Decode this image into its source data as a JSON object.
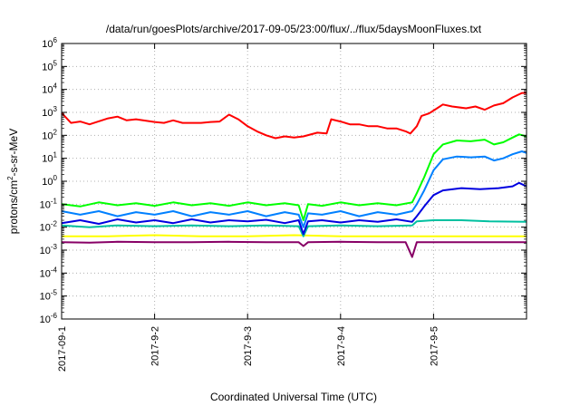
{
  "chart_data": {
    "type": "line",
    "title": "/data/run/goesPlots/archive/2017-09-05/23:00/flux/../flux/5daysMoonFluxes.txt",
    "xlabel": "Coordinated Universal Time (UTC)",
    "ylabel_parts": {
      "base": "protons/cm",
      "exp": "2",
      "rest": "-s-sr-MeV"
    },
    "x_ticks": [
      "2017-09-1",
      "2017-9-2",
      "2017-9-3",
      "2017-9-4",
      "2017-9-5"
    ],
    "x_tick_days": [
      0,
      1,
      2,
      3,
      4
    ],
    "xlim_days": [
      0,
      5
    ],
    "y_scale": "log",
    "ylim": [
      1e-06,
      1000000.0
    ],
    "y_ticks": [
      {
        "base": "10",
        "exp": "6"
      },
      {
        "base": "10",
        "exp": "5"
      },
      {
        "base": "10",
        "exp": "4"
      },
      {
        "base": "10",
        "exp": "3"
      },
      {
        "base": "10",
        "exp": "2"
      },
      {
        "base": "10",
        "exp": "1"
      },
      {
        "base": "10",
        "exp": "0"
      },
      {
        "base": "10",
        "exp": "-1"
      },
      {
        "base": "10",
        "exp": "-2"
      },
      {
        "base": "10",
        "exp": "-3"
      },
      {
        "base": "10",
        "exp": "-4"
      },
      {
        "base": "10",
        "exp": "-5"
      },
      {
        "base": "10",
        "exp": "-6"
      }
    ],
    "grid": true,
    "series": [
      {
        "color": "#ffff00",
        "points": [
          [
            0,
            0.004
          ],
          [
            0.5,
            0.004
          ],
          [
            1,
            0.0045
          ],
          [
            1.5,
            0.004
          ],
          [
            2,
            0.004
          ],
          [
            2.5,
            0.0045
          ],
          [
            3,
            0.004
          ],
          [
            3.5,
            0.004
          ],
          [
            4,
            0.004
          ],
          [
            4.3,
            0.004
          ],
          [
            4.6,
            0.004
          ],
          [
            5,
            0.004
          ]
        ]
      },
      {
        "color": "#880066",
        "points": [
          [
            0,
            0.0022
          ],
          [
            0.3,
            0.0021
          ],
          [
            0.6,
            0.0023
          ],
          [
            1,
            0.0022
          ],
          [
            1.4,
            0.0022
          ],
          [
            1.8,
            0.0023
          ],
          [
            2.2,
            0.0022
          ],
          [
            2.55,
            0.0022
          ],
          [
            2.6,
            0.0015
          ],
          [
            2.65,
            0.0022
          ],
          [
            3,
            0.0023
          ],
          [
            3.4,
            0.0022
          ],
          [
            3.7,
            0.0022
          ],
          [
            3.77,
            0.0005
          ],
          [
            3.82,
            0.0022
          ],
          [
            4,
            0.0022
          ],
          [
            4.4,
            0.0022
          ],
          [
            4.8,
            0.0022
          ],
          [
            5,
            0.0022
          ]
        ]
      },
      {
        "color": "#00c0a0",
        "points": [
          [
            0,
            0.012
          ],
          [
            0.3,
            0.01
          ],
          [
            0.6,
            0.012
          ],
          [
            1,
            0.011
          ],
          [
            1.4,
            0.012
          ],
          [
            1.8,
            0.011
          ],
          [
            2.2,
            0.012
          ],
          [
            2.55,
            0.011
          ],
          [
            2.6,
            0.004
          ],
          [
            2.65,
            0.011
          ],
          [
            3,
            0.012
          ],
          [
            3.4,
            0.011
          ],
          [
            3.77,
            0.012
          ],
          [
            3.82,
            0.018
          ],
          [
            4,
            0.02
          ],
          [
            4.3,
            0.02
          ],
          [
            4.6,
            0.018
          ],
          [
            5,
            0.017
          ]
        ]
      },
      {
        "color": "#0000e0",
        "points": [
          [
            0,
            0.015
          ],
          [
            0.2,
            0.02
          ],
          [
            0.4,
            0.014
          ],
          [
            0.6,
            0.022
          ],
          [
            0.8,
            0.016
          ],
          [
            1,
            0.02
          ],
          [
            1.2,
            0.015
          ],
          [
            1.4,
            0.022
          ],
          [
            1.6,
            0.016
          ],
          [
            1.8,
            0.02
          ],
          [
            2,
            0.018
          ],
          [
            2.2,
            0.021
          ],
          [
            2.4,
            0.015
          ],
          [
            2.55,
            0.02
          ],
          [
            2.6,
            0.005
          ],
          [
            2.65,
            0.018
          ],
          [
            2.8,
            0.02
          ],
          [
            3,
            0.016
          ],
          [
            3.2,
            0.02
          ],
          [
            3.4,
            0.017
          ],
          [
            3.6,
            0.022
          ],
          [
            3.77,
            0.017
          ],
          [
            3.82,
            0.03
          ],
          [
            3.9,
            0.08
          ],
          [
            4,
            0.25
          ],
          [
            4.1,
            0.4
          ],
          [
            4.3,
            0.5
          ],
          [
            4.5,
            0.45
          ],
          [
            4.7,
            0.5
          ],
          [
            4.85,
            0.6
          ],
          [
            4.92,
            0.85
          ],
          [
            5,
            0.6
          ]
        ]
      },
      {
        "color": "#0080ff",
        "points": [
          [
            0,
            0.05
          ],
          [
            0.2,
            0.035
          ],
          [
            0.4,
            0.05
          ],
          [
            0.6,
            0.03
          ],
          [
            0.8,
            0.045
          ],
          [
            1,
            0.035
          ],
          [
            1.2,
            0.05
          ],
          [
            1.4,
            0.03
          ],
          [
            1.6,
            0.045
          ],
          [
            1.8,
            0.035
          ],
          [
            2,
            0.05
          ],
          [
            2.2,
            0.03
          ],
          [
            2.4,
            0.045
          ],
          [
            2.55,
            0.035
          ],
          [
            2.6,
            0.01
          ],
          [
            2.65,
            0.04
          ],
          [
            2.8,
            0.035
          ],
          [
            3,
            0.05
          ],
          [
            3.2,
            0.03
          ],
          [
            3.4,
            0.045
          ],
          [
            3.6,
            0.035
          ],
          [
            3.77,
            0.05
          ],
          [
            3.82,
            0.1
          ],
          [
            3.9,
            0.4
          ],
          [
            4,
            3
          ],
          [
            4.1,
            9
          ],
          [
            4.25,
            12
          ],
          [
            4.4,
            11
          ],
          [
            4.55,
            12
          ],
          [
            4.65,
            8
          ],
          [
            4.75,
            10
          ],
          [
            4.85,
            15
          ],
          [
            4.95,
            20
          ],
          [
            5,
            17
          ]
        ]
      },
      {
        "color": "#00ff00",
        "points": [
          [
            0,
            0.1
          ],
          [
            0.2,
            0.08
          ],
          [
            0.4,
            0.12
          ],
          [
            0.6,
            0.09
          ],
          [
            0.8,
            0.11
          ],
          [
            1,
            0.085
          ],
          [
            1.2,
            0.12
          ],
          [
            1.4,
            0.09
          ],
          [
            1.6,
            0.11
          ],
          [
            1.8,
            0.085
          ],
          [
            2,
            0.12
          ],
          [
            2.2,
            0.09
          ],
          [
            2.4,
            0.11
          ],
          [
            2.55,
            0.09
          ],
          [
            2.6,
            0.02
          ],
          [
            2.65,
            0.1
          ],
          [
            2.8,
            0.085
          ],
          [
            3,
            0.12
          ],
          [
            3.2,
            0.09
          ],
          [
            3.4,
            0.11
          ],
          [
            3.6,
            0.09
          ],
          [
            3.77,
            0.12
          ],
          [
            3.82,
            0.3
          ],
          [
            3.9,
            1.5
          ],
          [
            4,
            15
          ],
          [
            4.1,
            40
          ],
          [
            4.25,
            60
          ],
          [
            4.4,
            55
          ],
          [
            4.55,
            65
          ],
          [
            4.65,
            40
          ],
          [
            4.75,
            50
          ],
          [
            4.85,
            80
          ],
          [
            4.92,
            110
          ],
          [
            5,
            90
          ]
        ]
      },
      {
        "color": "#ff0000",
        "points": [
          [
            0,
            950
          ],
          [
            0.1,
            350
          ],
          [
            0.2,
            400
          ],
          [
            0.3,
            300
          ],
          [
            0.5,
            550
          ],
          [
            0.6,
            650
          ],
          [
            0.7,
            450
          ],
          [
            0.8,
            500
          ],
          [
            1,
            380
          ],
          [
            1.1,
            350
          ],
          [
            1.2,
            450
          ],
          [
            1.3,
            350
          ],
          [
            1.5,
            350
          ],
          [
            1.6,
            380
          ],
          [
            1.7,
            400
          ],
          [
            1.8,
            800
          ],
          [
            1.9,
            500
          ],
          [
            2,
            250
          ],
          [
            2.1,
            150
          ],
          [
            2.2,
            100
          ],
          [
            2.3,
            75
          ],
          [
            2.4,
            90
          ],
          [
            2.5,
            80
          ],
          [
            2.6,
            90
          ],
          [
            2.75,
            130
          ],
          [
            2.85,
            120
          ],
          [
            2.9,
            500
          ],
          [
            3,
            400
          ],
          [
            3.1,
            300
          ],
          [
            3.2,
            300
          ],
          [
            3.3,
            250
          ],
          [
            3.4,
            250
          ],
          [
            3.5,
            200
          ],
          [
            3.6,
            200
          ],
          [
            3.7,
            150
          ],
          [
            3.75,
            120
          ],
          [
            3.82,
            250
          ],
          [
            3.87,
            700
          ],
          [
            3.95,
            900
          ],
          [
            4,
            1200
          ],
          [
            4.1,
            2200
          ],
          [
            4.2,
            1800
          ],
          [
            4.35,
            1500
          ],
          [
            4.45,
            1800
          ],
          [
            4.55,
            1300
          ],
          [
            4.65,
            2000
          ],
          [
            4.75,
            2500
          ],
          [
            4.85,
            4500
          ],
          [
            4.95,
            7000
          ],
          [
            5,
            7000
          ]
        ]
      }
    ]
  }
}
